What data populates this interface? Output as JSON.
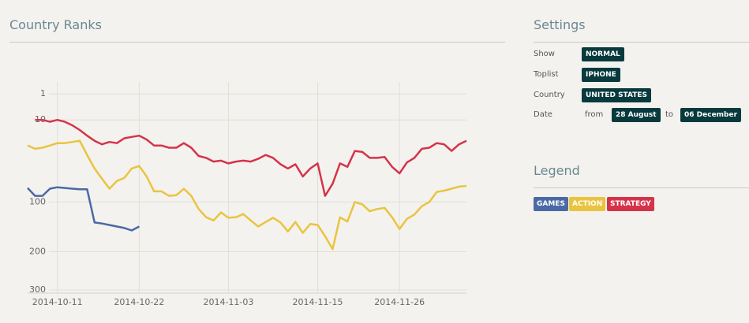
{
  "chart_data": {
    "type": "line",
    "title": "Country Ranks",
    "categories": [
      null,
      null,
      null,
      null,
      "2014-10-11",
      null,
      null,
      null,
      null,
      null,
      null,
      null,
      null,
      null,
      null,
      "2014-10-22",
      null,
      null,
      null,
      null,
      null,
      null,
      null,
      null,
      null,
      null,
      null,
      "2014-11-03",
      null,
      null,
      null,
      null,
      null,
      null,
      null,
      null,
      null,
      null,
      null,
      "2014-11-15",
      null,
      null,
      null,
      null,
      null,
      null,
      null,
      null,
      null,
      null,
      "2014-11-26",
      null,
      null,
      null,
      null,
      null,
      null,
      null,
      null,
      null
    ],
    "series": [
      {
        "name": "GAMES",
        "color": "#4a69a6",
        "values": [
          78,
          90,
          90,
          79,
          77,
          78,
          79,
          80,
          80,
          137,
          139,
          142,
          145,
          148,
          153,
          145,
          null,
          null,
          null,
          null,
          null,
          null,
          null,
          null,
          null,
          null,
          null,
          null,
          null,
          null,
          null,
          null,
          null,
          null,
          null,
          null,
          null,
          null,
          null,
          null,
          null,
          null,
          null,
          null,
          null,
          null,
          null,
          null,
          null,
          null,
          null,
          null,
          null,
          null,
          null,
          null,
          null,
          null,
          null,
          null
        ]
      },
      {
        "name": "ACTION",
        "color": "#eac440",
        "values": [
          28,
          31,
          30,
          28,
          26,
          26,
          25,
          24,
          37,
          52,
          65,
          79,
          68,
          64,
          52,
          49,
          62,
          83,
          83,
          90,
          89,
          79,
          90,
          112,
          127,
          133,
          118,
          128,
          127,
          121,
          133,
          145,
          136,
          128,
          137,
          155,
          136,
          158,
          140,
          142,
          165,
          194,
          127,
          135,
          100,
          104,
          116,
          112,
          110,
          127,
          150,
          130,
          122,
          107,
          100,
          84,
          82,
          79,
          76,
          75
        ]
      },
      {
        "name": "STRATEGY",
        "color": "#d5334a",
        "values": [
          null,
          10,
          10,
          11,
          10,
          11,
          13,
          16,
          20,
          24,
          27,
          25,
          26,
          22,
          21,
          20,
          23,
          28,
          28,
          30,
          30,
          26,
          30,
          38,
          40,
          44,
          43,
          46,
          44,
          43,
          44,
          41,
          37,
          40,
          47,
          52,
          47,
          62,
          52,
          46,
          90,
          72,
          46,
          50,
          33,
          34,
          40,
          40,
          39,
          50,
          58,
          45,
          40,
          31,
          30,
          26,
          27,
          33,
          27,
          24
        ]
      }
    ],
    "ylim": [
      0,
      300
    ],
    "yticks": [
      1,
      10,
      100,
      200,
      300
    ],
    "yscale": "sqrt",
    "y_inverted": true,
    "grid": true
  },
  "settings": {
    "title": "Settings",
    "rows": [
      {
        "label": "Show",
        "value": "NORMAL"
      },
      {
        "label": "Toplist",
        "value": "IPHONE"
      },
      {
        "label": "Country",
        "value": "UNITED STATES"
      }
    ],
    "date": {
      "label": "Date",
      "from_label": "from",
      "from": "28 August",
      "to_label": "to",
      "to": "06 December"
    }
  },
  "legend": {
    "title": "Legend"
  }
}
